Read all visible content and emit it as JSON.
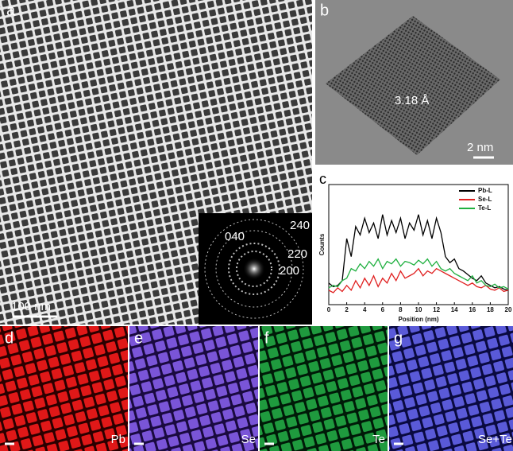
{
  "panels": {
    "a": {
      "label": "a",
      "scale": "100 nm",
      "saed": [
        "040",
        "240",
        "220",
        "200"
      ]
    },
    "b": {
      "label": "b",
      "spacing": "3.18 Å",
      "scale": "2 nm"
    },
    "c": {
      "label": "c"
    },
    "d": {
      "label": "d",
      "element": "Pb"
    },
    "e": {
      "label": "e",
      "element": "Se"
    },
    "f": {
      "label": "f",
      "element": "Te"
    },
    "g": {
      "label": "g",
      "element": "Se+Te"
    }
  },
  "chart_data": {
    "type": "line",
    "x_label": "Position (nm)",
    "y_label": "Counts",
    "x": [
      0,
      0.5,
      1,
      1.5,
      2,
      2.5,
      3,
      3.5,
      4,
      4.5,
      5,
      5.5,
      6,
      6.5,
      7,
      7.5,
      8,
      8.5,
      9,
      9.5,
      10,
      10.5,
      11,
      11.5,
      12,
      12.5,
      13,
      13.5,
      14,
      14.5,
      15,
      15.5,
      16,
      16.5,
      17,
      17.5,
      18,
      18.5,
      19,
      19.5,
      20
    ],
    "series": [
      {
        "name": "Pb-L",
        "color": "#000000",
        "values": [
          18,
          15,
          16,
          20,
          55,
          40,
          65,
          58,
          72,
          60,
          68,
          55,
          75,
          58,
          70,
          60,
          72,
          55,
          68,
          62,
          75,
          58,
          70,
          55,
          72,
          60,
          40,
          35,
          38,
          30,
          28,
          25,
          22,
          20,
          24,
          18,
          16,
          14,
          15,
          13,
          12
        ]
      },
      {
        "name": "Se-L",
        "color": "#e02020",
        "values": [
          12,
          10,
          14,
          11,
          16,
          12,
          20,
          14,
          22,
          16,
          24,
          15,
          22,
          18,
          26,
          20,
          28,
          22,
          24,
          26,
          30,
          24,
          28,
          26,
          30,
          28,
          26,
          24,
          22,
          20,
          18,
          16,
          18,
          15,
          14,
          16,
          13,
          12,
          14,
          11,
          12
        ]
      },
      {
        "name": "Te-L",
        "color": "#20b040",
        "values": [
          14,
          16,
          15,
          20,
          22,
          30,
          28,
          34,
          30,
          36,
          32,
          38,
          30,
          36,
          34,
          38,
          32,
          36,
          35,
          33,
          37,
          34,
          38,
          32,
          36,
          30,
          28,
          30,
          26,
          24,
          22,
          20,
          24,
          18,
          20,
          16,
          15,
          17,
          14,
          15,
          13
        ]
      }
    ],
    "xlim": [
      0,
      20
    ],
    "xticks": [
      0,
      2,
      4,
      6,
      8,
      10,
      12,
      14,
      16,
      18,
      20
    ],
    "ylim": [
      0,
      100
    ],
    "legend": "upper-right"
  }
}
